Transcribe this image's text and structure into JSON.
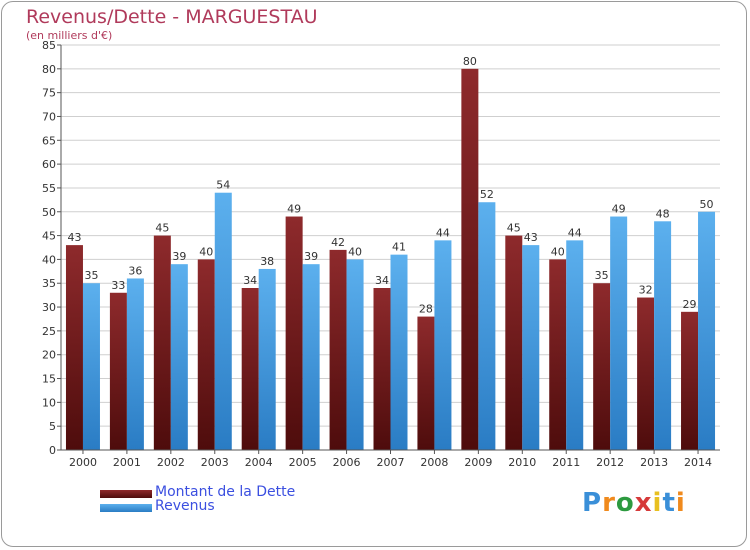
{
  "title": "Revenus/Dette - MARGUESTAU",
  "subtitle": "(en milliers d'€)",
  "legend": {
    "debt_label": "Montant de la Dette",
    "revenue_label": "Revenus"
  },
  "logo_text": "Proxiti",
  "colors": {
    "title": "#b03a5b",
    "debt": "#7a1d1f",
    "revenue": "#2f8fde",
    "legend_text": "#3b4fe0"
  },
  "chart_data": {
    "type": "bar",
    "categories": [
      "2000",
      "2001",
      "2002",
      "2003",
      "2004",
      "2005",
      "2006",
      "2007",
      "2008",
      "2009",
      "2010",
      "2011",
      "2012",
      "2013",
      "2014"
    ],
    "series": [
      {
        "name": "Montant de la Dette",
        "values": [
          43,
          33,
          45,
          40,
          34,
          49,
          42,
          34,
          28,
          80,
          45,
          40,
          35,
          32,
          29
        ]
      },
      {
        "name": "Revenus",
        "values": [
          35,
          36,
          39,
          54,
          38,
          39,
          40,
          41,
          44,
          52,
          43,
          44,
          49,
          48,
          50
        ]
      }
    ],
    "ylim": [
      0,
      85
    ],
    "yticks": [
      0,
      5,
      10,
      15,
      20,
      25,
      30,
      35,
      40,
      45,
      50,
      55,
      60,
      65,
      70,
      75,
      80,
      85
    ],
    "grid": true,
    "legend_position": "bottom-left"
  }
}
